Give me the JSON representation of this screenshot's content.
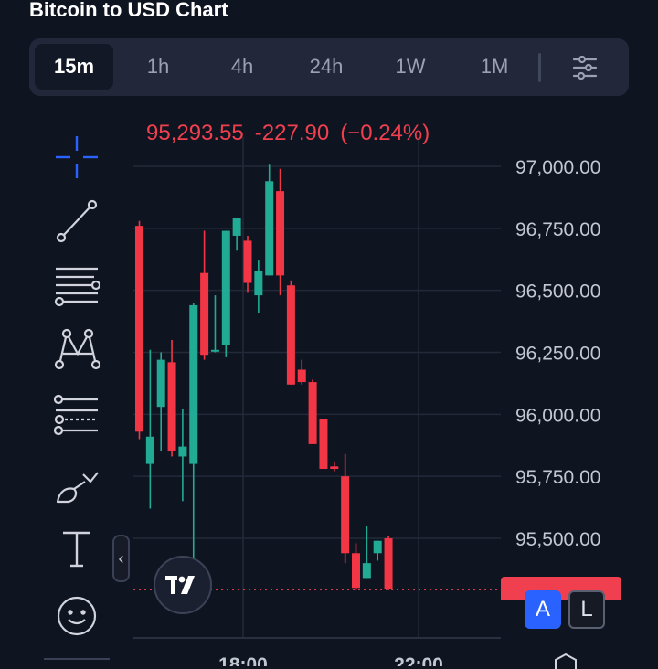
{
  "header": {
    "title": "Bitcoin to USD Chart"
  },
  "timeframes": [
    {
      "label": "15m",
      "active": true
    },
    {
      "label": "1h",
      "active": false
    },
    {
      "label": "4h",
      "active": false
    },
    {
      "label": "24h",
      "active": false
    },
    {
      "label": "1W",
      "active": false
    },
    {
      "label": "1M",
      "active": false
    }
  ],
  "tools": [
    {
      "icon": "crosshair-icon"
    },
    {
      "icon": "trend-line-icon"
    },
    {
      "icon": "horizontal-lines-icon"
    },
    {
      "icon": "pattern-icon"
    },
    {
      "icon": "fib-icon"
    },
    {
      "icon": "brush-icon"
    },
    {
      "icon": "text-icon"
    },
    {
      "icon": "emoji-icon"
    }
  ],
  "ohlc": {
    "price": "95,293.55",
    "change": "-227.90",
    "change_pct": "(−0.24%)"
  },
  "scale_buttons": {
    "auto": "A",
    "log": "L"
  },
  "colors": {
    "up": "#22ab94",
    "down": "#f23645",
    "accent": "#2962ff",
    "background": "#0f1421"
  },
  "chart_data": {
    "type": "candlestick",
    "title": "Bitcoin to USD Chart",
    "interval": "15m",
    "y_tick_labels": [
      "97,000.00",
      "96,750.00",
      "96,500.00",
      "96,250.00",
      "96,000.00",
      "95,750.00",
      "95,500.00"
    ],
    "y_ticks": [
      97000,
      96750,
      96500,
      96250,
      96000,
      95750,
      95500
    ],
    "ylim": [
      95160,
      97070
    ],
    "x_tick_labels": [
      "18:00",
      "22:00"
    ],
    "current_price": 95293.55,
    "candles": [
      {
        "open": 96760,
        "high": 96780,
        "low": 95900,
        "close": 95930
      },
      {
        "open": 95800,
        "high": 96260,
        "low": 95620,
        "close": 95910
      },
      {
        "open": 96030,
        "high": 96250,
        "low": 95850,
        "close": 96220
      },
      {
        "open": 96210,
        "high": 96300,
        "low": 95830,
        "close": 95850
      },
      {
        "open": 95830,
        "high": 96020,
        "low": 95650,
        "close": 95870
      },
      {
        "open": 95800,
        "high": 96450,
        "low": 95300,
        "close": 96440
      },
      {
        "open": 96570,
        "high": 96740,
        "low": 96220,
        "close": 96240
      },
      {
        "open": 96260,
        "high": 96480,
        "low": 96250,
        "close": 96260
      },
      {
        "open": 96280,
        "high": 96740,
        "low": 96230,
        "close": 96740
      },
      {
        "open": 96720,
        "high": 96790,
        "low": 96660,
        "close": 96790
      },
      {
        "open": 96700,
        "high": 96720,
        "low": 96490,
        "close": 96530
      },
      {
        "open": 96480,
        "high": 96620,
        "low": 96410,
        "close": 96580
      },
      {
        "open": 96560,
        "high": 97010,
        "low": 96560,
        "close": 96940
      },
      {
        "open": 96900,
        "high": 96990,
        "low": 96480,
        "close": 96560
      },
      {
        "open": 96520,
        "high": 96540,
        "low": 96120,
        "close": 96120
      },
      {
        "open": 96180,
        "high": 96220,
        "low": 96120,
        "close": 96130
      },
      {
        "open": 96130,
        "high": 96140,
        "low": 95880,
        "close": 95880
      },
      {
        "open": 95980,
        "high": 95980,
        "low": 95780,
        "close": 95780
      },
      {
        "open": 95790,
        "high": 95810,
        "low": 95770,
        "close": 95780
      },
      {
        "open": 95750,
        "high": 95840,
        "low": 95400,
        "close": 95440
      },
      {
        "open": 95440,
        "high": 95480,
        "low": 95290,
        "close": 95300
      },
      {
        "open": 95340,
        "high": 95550,
        "low": 95340,
        "close": 95400
      },
      {
        "open": 95440,
        "high": 95490,
        "low": 95410,
        "close": 95490
      },
      {
        "open": 95500,
        "high": 95510,
        "low": 95290,
        "close": 95293.55
      }
    ]
  }
}
